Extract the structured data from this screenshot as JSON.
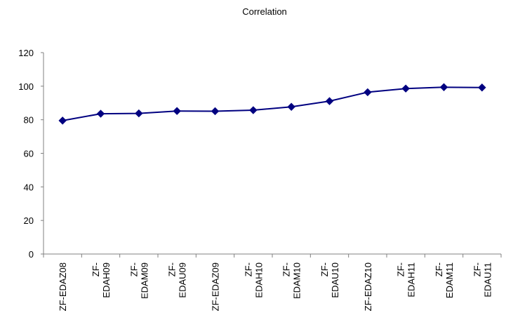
{
  "chart_data": {
    "type": "line",
    "title": "Correlation",
    "xlabel": "",
    "ylabel": "",
    "ylim": [
      0,
      120
    ],
    "yticks": [
      0,
      20,
      40,
      60,
      80,
      100,
      120
    ],
    "grid": false,
    "legend": "none",
    "categories": [
      [
        "ZF-EDAZ08"
      ],
      [
        "ZF-",
        "EDAH09"
      ],
      [
        "ZF-",
        "EDAM09"
      ],
      [
        "ZF-",
        "EDAU09"
      ],
      [
        "ZF-EDAZ09"
      ],
      [
        "ZF-",
        "EDAH10"
      ],
      [
        "ZF-",
        "EDAM10"
      ],
      [
        "ZF-",
        "EDAU10"
      ],
      [
        "ZF-EDAZ10"
      ],
      [
        "ZF-",
        "EDAH11"
      ],
      [
        "ZF-",
        "EDAM11"
      ],
      [
        "ZF-",
        "EDAU11"
      ]
    ],
    "values": [
      79.5,
      83.6,
      83.8,
      85.2,
      85.1,
      85.7,
      87.7,
      91.1,
      96.4,
      98.6,
      99.4,
      99.2
    ],
    "colors": {
      "line": "#000080",
      "marker": "#000080",
      "axis": "#808080"
    }
  }
}
